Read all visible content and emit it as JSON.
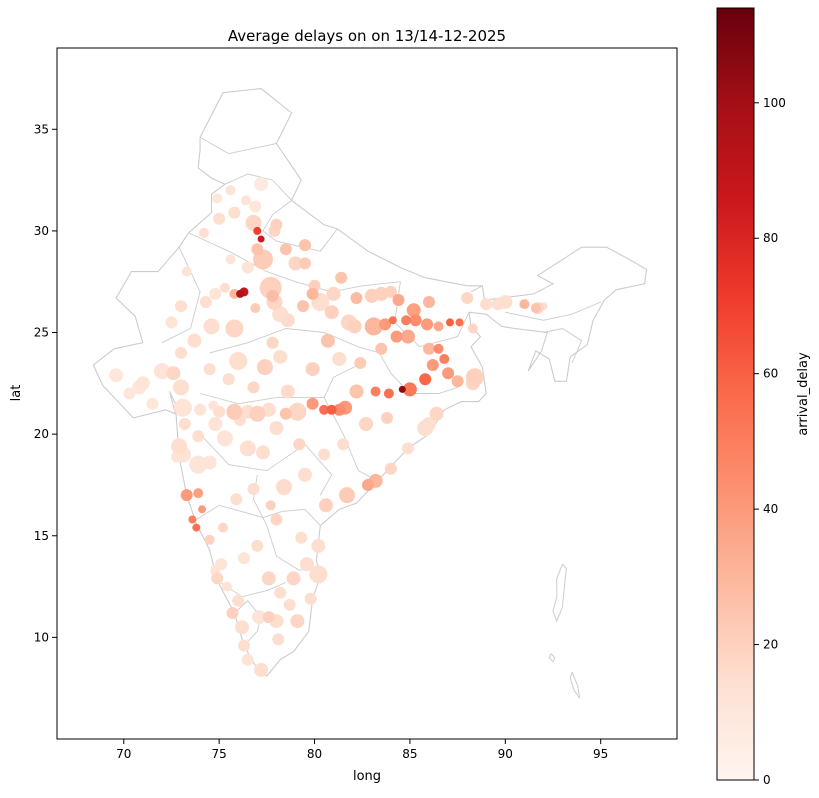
{
  "chart_data": {
    "type": "scatter",
    "title": "Average delays on on 13/14-12-2025",
    "xlabel": "long",
    "ylabel": "lat",
    "xlim": [
      66.5,
      99.0
    ],
    "ylim": [
      5.0,
      39.0
    ],
    "xticks": [
      70,
      75,
      80,
      85,
      90,
      95
    ],
    "yticks": [
      10,
      15,
      20,
      25,
      30,
      35
    ],
    "grid": false,
    "colorbar": {
      "label": "arrival_delay",
      "min": 0,
      "max": 114,
      "ticks": [
        0,
        20,
        40,
        60,
        80,
        100
      ],
      "colormap": [
        "#fff5f0",
        "#fee0d2",
        "#fcbba1",
        "#fc9272",
        "#fb6a4a",
        "#ef3b2c",
        "#cb181d",
        "#a50f15",
        "#67000d"
      ]
    },
    "basemap_color": "#cccccc",
    "points": [
      [
        77.2,
        32.3,
        8,
        14
      ],
      [
        76.9,
        31.2,
        10,
        12
      ],
      [
        76.8,
        30.4,
        18,
        16
      ],
      [
        77.0,
        30.0,
        70,
        8
      ],
      [
        77.2,
        29.6,
        85,
        7
      ],
      [
        77.0,
        29.1,
        25,
        12
      ],
      [
        77.3,
        28.6,
        22,
        20
      ],
      [
        76.5,
        28.2,
        12,
        12
      ],
      [
        77.7,
        27.2,
        20,
        22
      ],
      [
        77.9,
        26.5,
        18,
        16
      ],
      [
        78.2,
        25.9,
        15,
        16
      ],
      [
        76.3,
        27.0,
        88,
        9
      ],
      [
        76.1,
        26.9,
        95,
        8
      ],
      [
        75.8,
        26.9,
        30,
        10
      ],
      [
        74.8,
        26.9,
        12,
        12
      ],
      [
        75.3,
        27.2,
        15,
        10
      ],
      [
        76.9,
        26.2,
        22,
        10
      ],
      [
        77.8,
        26.8,
        28,
        12
      ],
      [
        78.6,
        25.6,
        16,
        14
      ],
      [
        79.4,
        26.3,
        25,
        12
      ],
      [
        79.9,
        26.9,
        30,
        12
      ],
      [
        80.3,
        26.5,
        15,
        18
      ],
      [
        81.0,
        26.9,
        18,
        14
      ],
      [
        81.8,
        25.5,
        18,
        16
      ],
      [
        82.1,
        25.3,
        20,
        14
      ],
      [
        83.1,
        25.3,
        30,
        18
      ],
      [
        83.7,
        25.4,
        40,
        12
      ],
      [
        84.1,
        25.6,
        55,
        8
      ],
      [
        84.8,
        25.6,
        50,
        10
      ],
      [
        85.3,
        25.6,
        45,
        12
      ],
      [
        85.9,
        25.4,
        40,
        12
      ],
      [
        86.5,
        25.3,
        35,
        10
      ],
      [
        87.1,
        25.5,
        60,
        8
      ],
      [
        87.6,
        25.5,
        55,
        8
      ],
      [
        88.3,
        25.2,
        18,
        10
      ],
      [
        86.5,
        24.2,
        45,
        10
      ],
      [
        86.8,
        23.7,
        50,
        10
      ],
      [
        87.0,
        23.0,
        40,
        12
      ],
      [
        87.5,
        22.6,
        30,
        12
      ],
      [
        88.3,
        22.5,
        18,
        14
      ],
      [
        88.4,
        22.8,
        20,
        18
      ],
      [
        86.2,
        23.4,
        40,
        12
      ],
      [
        85.8,
        22.7,
        58,
        12
      ],
      [
        85.0,
        22.2,
        52,
        14
      ],
      [
        84.6,
        22.2,
        105,
        7
      ],
      [
        83.9,
        22.0,
        55,
        10
      ],
      [
        83.2,
        22.1,
        50,
        10
      ],
      [
        82.2,
        22.1,
        25,
        14
      ],
      [
        81.6,
        21.3,
        40,
        14
      ],
      [
        81.3,
        21.2,
        45,
        12
      ],
      [
        80.9,
        21.2,
        60,
        10
      ],
      [
        80.5,
        21.2,
        55,
        10
      ],
      [
        79.9,
        21.5,
        40,
        12
      ],
      [
        79.1,
        21.1,
        18,
        18
      ],
      [
        78.5,
        21.0,
        25,
        12
      ],
      [
        77.6,
        21.2,
        15,
        14
      ],
      [
        77.0,
        21.0,
        20,
        16
      ],
      [
        76.5,
        21.1,
        15,
        14
      ],
      [
        75.8,
        21.1,
        22,
        16
      ],
      [
        75.0,
        21.1,
        15,
        12
      ],
      [
        74.0,
        21.2,
        12,
        12
      ],
      [
        73.1,
        21.3,
        12,
        18
      ],
      [
        72.9,
        19.4,
        15,
        16
      ],
      [
        73.1,
        19.0,
        12,
        16
      ],
      [
        73.9,
        18.5,
        12,
        18
      ],
      [
        74.5,
        18.6,
        12,
        14
      ],
      [
        75.3,
        19.8,
        12,
        16
      ],
      [
        76.5,
        19.3,
        14,
        16
      ],
      [
        77.3,
        19.1,
        15,
        14
      ],
      [
        78.4,
        17.4,
        16,
        16
      ],
      [
        79.5,
        18.0,
        15,
        14
      ],
      [
        80.6,
        16.5,
        20,
        14
      ],
      [
        81.7,
        17.0,
        22,
        16
      ],
      [
        82.8,
        17.5,
        35,
        12
      ],
      [
        83.2,
        17.7,
        30,
        14
      ],
      [
        84.0,
        18.3,
        18,
        12
      ],
      [
        84.9,
        19.3,
        15,
        12
      ],
      [
        85.8,
        20.3,
        15,
        16
      ],
      [
        86.0,
        20.5,
        15,
        14
      ],
      [
        86.4,
        21.0,
        18,
        14
      ],
      [
        73.8,
        15.4,
        55,
        8
      ],
      [
        73.6,
        15.8,
        50,
        8
      ],
      [
        74.1,
        16.3,
        40,
        8
      ],
      [
        73.9,
        17.1,
        38,
        10
      ],
      [
        74.5,
        14.8,
        20,
        10
      ],
      [
        74.9,
        12.9,
        18,
        12
      ],
      [
        75.7,
        11.2,
        20,
        12
      ],
      [
        76.2,
        10.5,
        15,
        14
      ],
      [
        76.3,
        9.6,
        15,
        12
      ],
      [
        76.5,
        8.9,
        12,
        12
      ],
      [
        77.2,
        8.4,
        15,
        14
      ],
      [
        77.6,
        11.0,
        20,
        12
      ],
      [
        78.0,
        10.8,
        15,
        14
      ],
      [
        78.1,
        9.9,
        15,
        12
      ],
      [
        79.1,
        10.8,
        18,
        14
      ],
      [
        80.2,
        13.1,
        15,
        18
      ],
      [
        79.6,
        13.6,
        15,
        14
      ],
      [
        78.9,
        12.9,
        18,
        14
      ],
      [
        77.6,
        12.9,
        18,
        14
      ],
      [
        77.0,
        14.5,
        15,
        12
      ],
      [
        78.0,
        15.8,
        18,
        12
      ],
      [
        77.7,
        16.5,
        20,
        10
      ],
      [
        76.8,
        17.3,
        15,
        12
      ],
      [
        75.9,
        16.8,
        15,
        12
      ],
      [
        75.2,
        15.4,
        18,
        10
      ],
      [
        73.0,
        22.3,
        15,
        16
      ],
      [
        72.6,
        23.0,
        18,
        14
      ],
      [
        72.0,
        23.1,
        12,
        16
      ],
      [
        71.0,
        22.5,
        12,
        14
      ],
      [
        70.8,
        22.3,
        10,
        14
      ],
      [
        69.6,
        22.9,
        10,
        14
      ],
      [
        73.7,
        24.6,
        15,
        14
      ],
      [
        74.6,
        25.3,
        15,
        16
      ],
      [
        75.8,
        25.2,
        18,
        18
      ],
      [
        76.0,
        23.6,
        15,
        18
      ],
      [
        77.4,
        23.3,
        20,
        16
      ],
      [
        78.2,
        23.8,
        15,
        14
      ],
      [
        79.9,
        23.2,
        20,
        14
      ],
      [
        80.7,
        24.6,
        25,
        14
      ],
      [
        81.3,
        23.7,
        15,
        14
      ],
      [
        82.4,
        23.5,
        22,
        12
      ],
      [
        83.5,
        24.2,
        25,
        12
      ],
      [
        84.3,
        24.8,
        40,
        12
      ],
      [
        84.9,
        24.8,
        35,
        14
      ],
      [
        86.0,
        24.2,
        30,
        12
      ],
      [
        88.0,
        26.7,
        18,
        12
      ],
      [
        89.0,
        26.4,
        15,
        12
      ],
      [
        90.0,
        26.5,
        15,
        14
      ],
      [
        91.0,
        26.4,
        30,
        10
      ],
      [
        91.7,
        26.2,
        18,
        12
      ],
      [
        92.0,
        26.3,
        15,
        8
      ],
      [
        91.6,
        26.2,
        25,
        10
      ],
      [
        89.6,
        26.4,
        15,
        12
      ],
      [
        83.0,
        26.8,
        20,
        14
      ],
      [
        80.9,
        26.0,
        20,
        14
      ],
      [
        79.0,
        28.4,
        18,
        14
      ],
      [
        78.5,
        29.1,
        25,
        12
      ],
      [
        79.5,
        28.4,
        22,
        12
      ],
      [
        80.0,
        27.3,
        20,
        12
      ],
      [
        81.4,
        27.7,
        25,
        12
      ],
      [
        82.2,
        26.7,
        28,
        12
      ],
      [
        83.5,
        26.9,
        20,
        14
      ],
      [
        84.4,
        26.6,
        35,
        12
      ],
      [
        85.2,
        26.1,
        38,
        14
      ],
      [
        86.0,
        26.5,
        30,
        12
      ],
      [
        84.0,
        27.0,
        20,
        12
      ],
      [
        77.8,
        24.5,
        18,
        12
      ],
      [
        78.6,
        22.1,
        16,
        14
      ],
      [
        76.8,
        22.3,
        18,
        12
      ],
      [
        75.5,
        22.7,
        15,
        12
      ],
      [
        74.5,
        23.2,
        15,
        12
      ],
      [
        74.8,
        20.5,
        12,
        14
      ],
      [
        76.1,
        20.7,
        15,
        12
      ],
      [
        78.0,
        20.3,
        15,
        14
      ],
      [
        79.2,
        19.5,
        18,
        12
      ],
      [
        80.5,
        19.0,
        15,
        12
      ],
      [
        81.5,
        19.5,
        15,
        12
      ],
      [
        82.7,
        20.5,
        18,
        14
      ],
      [
        83.8,
        20.8,
        20,
        12
      ],
      [
        80.2,
        14.5,
        15,
        14
      ],
      [
        79.3,
        14.9,
        15,
        12
      ],
      [
        76.3,
        13.9,
        12,
        12
      ],
      [
        75.1,
        13.6,
        12,
        12
      ],
      [
        76.0,
        11.8,
        15,
        12
      ],
      [
        77.1,
        11.0,
        12,
        14
      ],
      [
        78.7,
        11.6,
        15,
        12
      ],
      [
        79.8,
        11.9,
        15,
        12
      ],
      [
        78.2,
        12.2,
        15,
        12
      ],
      [
        74.8,
        13.3,
        12,
        10
      ],
      [
        75.4,
        12.5,
        12,
        10
      ],
      [
        73.3,
        17.0,
        40,
        12
      ],
      [
        73.9,
        19.9,
        15,
        12
      ],
      [
        72.8,
        18.9,
        12,
        12
      ],
      [
        73.2,
        20.5,
        15,
        12
      ],
      [
        74.7,
        21.4,
        12,
        10
      ],
      [
        71.5,
        21.5,
        10,
        12
      ],
      [
        70.3,
        22.0,
        10,
        12
      ],
      [
        73.0,
        24.0,
        15,
        12
      ],
      [
        72.5,
        25.5,
        12,
        12
      ],
      [
        73.0,
        26.3,
        15,
        12
      ],
      [
        74.3,
        26.5,
        15,
        12
      ],
      [
        73.3,
        28.0,
        12,
        10
      ],
      [
        74.2,
        29.9,
        15,
        10
      ],
      [
        75.0,
        30.6,
        15,
        12
      ],
      [
        75.8,
        30.9,
        15,
        12
      ],
      [
        76.4,
        31.5,
        12,
        10
      ],
      [
        75.6,
        32.0,
        12,
        10
      ],
      [
        74.9,
        31.6,
        10,
        10
      ],
      [
        75.6,
        28.6,
        12,
        10
      ],
      [
        79.5,
        29.3,
        25,
        12
      ],
      [
        78.0,
        30.3,
        20,
        12
      ],
      [
        77.9,
        30.0,
        18,
        12
      ]
    ]
  }
}
